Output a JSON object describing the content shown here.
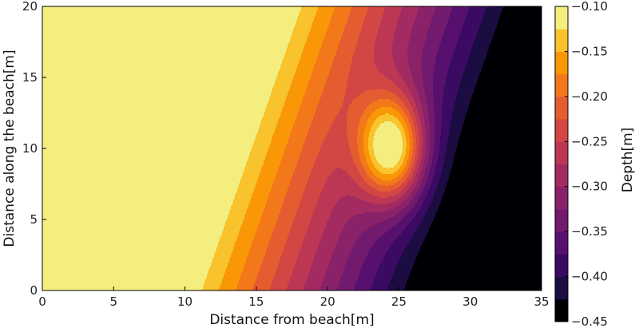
{
  "chart_data": {
    "type": "contour",
    "xlabel": "Distance from beach[m]",
    "ylabel": "Distance along the beach[m]",
    "colorbar_label": "Depth[m]",
    "xlim": [
      0,
      35
    ],
    "ylim": [
      0,
      20
    ],
    "x_ticks": [
      "0",
      "5",
      "10",
      "15",
      "20",
      "25",
      "30",
      "35"
    ],
    "y_ticks": [
      "0",
      "5",
      "10",
      "15",
      "20"
    ],
    "colorbar_ticks": [
      "−0.45",
      "−0.40",
      "−0.35",
      "−0.30",
      "−0.25",
      "−0.20",
      "−0.15",
      "−0.10"
    ],
    "colorbar_range": [
      -0.45,
      -0.1
    ],
    "colormap": "inferno",
    "level_step": 0.025,
    "field": {
      "description_free": false,
      "shore_depth": -0.1,
      "shelf_edge_x_at_y0": 10,
      "shelf_edge_x_at_y20": 17,
      "slope_per_m": -0.0212,
      "bump_center": [
        24.5,
        10
      ],
      "bump_amplitude": 0.25,
      "bump_sigma": [
        1.6,
        2.6
      ]
    }
  }
}
